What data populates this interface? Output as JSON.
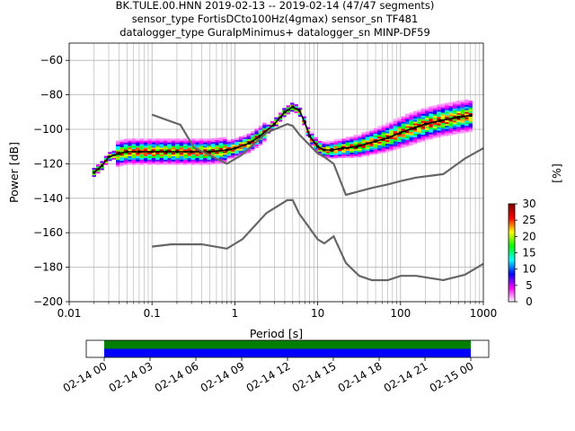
{
  "title_lines": [
    "BK.TULE.00.HNN   2019-02-13 -- 2019-02-14  (47/47 segments)",
    "sensor_type FortisDCto100Hz(4gmax) sensor_sn TF481",
    "datalogger_type GuralpMinimus+ datalogger_sn MINP-DF59"
  ],
  "chart_data": [
    {
      "type": "heatmap",
      "xlabel": "Period [s]",
      "ylabel": "Power [dB]",
      "xscale": "log",
      "xlim": [
        0.01,
        1000
      ],
      "ylim": [
        -200,
        -50
      ],
      "x_ticks": [
        {
          "value": 0.01,
          "label": "0.01"
        },
        {
          "value": 0.1,
          "label": "0.1"
        },
        {
          "value": 1,
          "label": "1"
        },
        {
          "value": 10,
          "label": "10"
        },
        {
          "value": 100,
          "label": "100"
        },
        {
          "value": 1000,
          "label": "1000"
        }
      ],
      "y_ticks": [
        -60,
        -80,
        -100,
        -120,
        -140,
        -160,
        -180,
        -200
      ],
      "grid": true,
      "colorbar": {
        "label": "[%]",
        "min": 0,
        "max": 30,
        "ticks": [
          0,
          5,
          10,
          15,
          20,
          25,
          30
        ],
        "colormap": [
          "#ffffff",
          "#ff00ff",
          "#0000ff",
          "#00ffff",
          "#00ff00",
          "#ffff00",
          "#ff0000",
          "#800000"
        ]
      },
      "series": [
        {
          "role": "mode",
          "color": "#000000",
          "x": [
            0.02,
            0.025,
            0.03,
            0.04,
            0.05,
            0.07,
            0.1,
            0.15,
            0.2,
            0.3,
            0.5,
            0.8,
            1.0,
            1.5,
            2.0,
            3.0,
            4.0,
            5.0,
            6.0,
            7.0,
            8.0,
            10,
            12,
            15,
            20,
            30,
            50,
            70,
            100,
            150,
            200,
            300,
            500,
            700
          ],
          "y": [
            -125,
            -121,
            -116,
            -114,
            -113,
            -113,
            -113,
            -113,
            -113,
            -113,
            -113,
            -112,
            -111,
            -108,
            -104,
            -97,
            -90,
            -87,
            -89,
            -96,
            -104,
            -110,
            -112,
            -112,
            -111,
            -110,
            -107,
            -105,
            -102,
            -99,
            -97,
            -95,
            -93,
            -92
          ]
        },
        {
          "role": "nhnm",
          "color": "#666666",
          "x": [
            0.1,
            0.22,
            0.32,
            0.8,
            1.2,
            2.4,
            4.3,
            5.0,
            6.0,
            10,
            12,
            15.6,
            21.9,
            31.6,
            45,
            70,
            101,
            154,
            328,
            600,
            1000
          ],
          "y": [
            -91.5,
            -97.4,
            -110.5,
            -120,
            -115,
            -102,
            -97,
            -98,
            -103,
            -114,
            -116,
            -120,
            -138,
            -136,
            -134,
            -132,
            -130,
            -128,
            -126,
            -117,
            -111
          ]
        },
        {
          "role": "nlnm",
          "color": "#666666",
          "x": [
            0.1,
            0.17,
            0.4,
            0.8,
            1.24,
            2.4,
            4.3,
            5.0,
            6.0,
            10,
            12,
            15.6,
            21.9,
            31.6,
            45,
            70,
            101,
            154,
            328,
            600,
            1000
          ],
          "y": [
            -168,
            -166.7,
            -166.7,
            -169.2,
            -163.7,
            -148.6,
            -141.1,
            -141.1,
            -149,
            -163.8,
            -166.2,
            -162.1,
            -177.5,
            -185,
            -187.5,
            -187.5,
            -185,
            -185,
            -187.5,
            -184.4,
            -178
          ]
        }
      ]
    },
    {
      "type": "timeline",
      "xlim": [
        "2019-02-14 00",
        "2019-02-15 00"
      ],
      "x_ticks": [
        "02-14 00",
        "02-14 03",
        "02-14 06",
        "02-14 09",
        "02-14 12",
        "02-14 15",
        "02-14 18",
        "02-14 21",
        "02-15 00"
      ],
      "bands": [
        {
          "color": "#008000",
          "start": "2019-02-14 00",
          "end": "2019-02-15 00"
        },
        {
          "color": "#0000ff",
          "start": "2019-02-14 00",
          "end": "2019-02-15 00"
        }
      ]
    }
  ]
}
